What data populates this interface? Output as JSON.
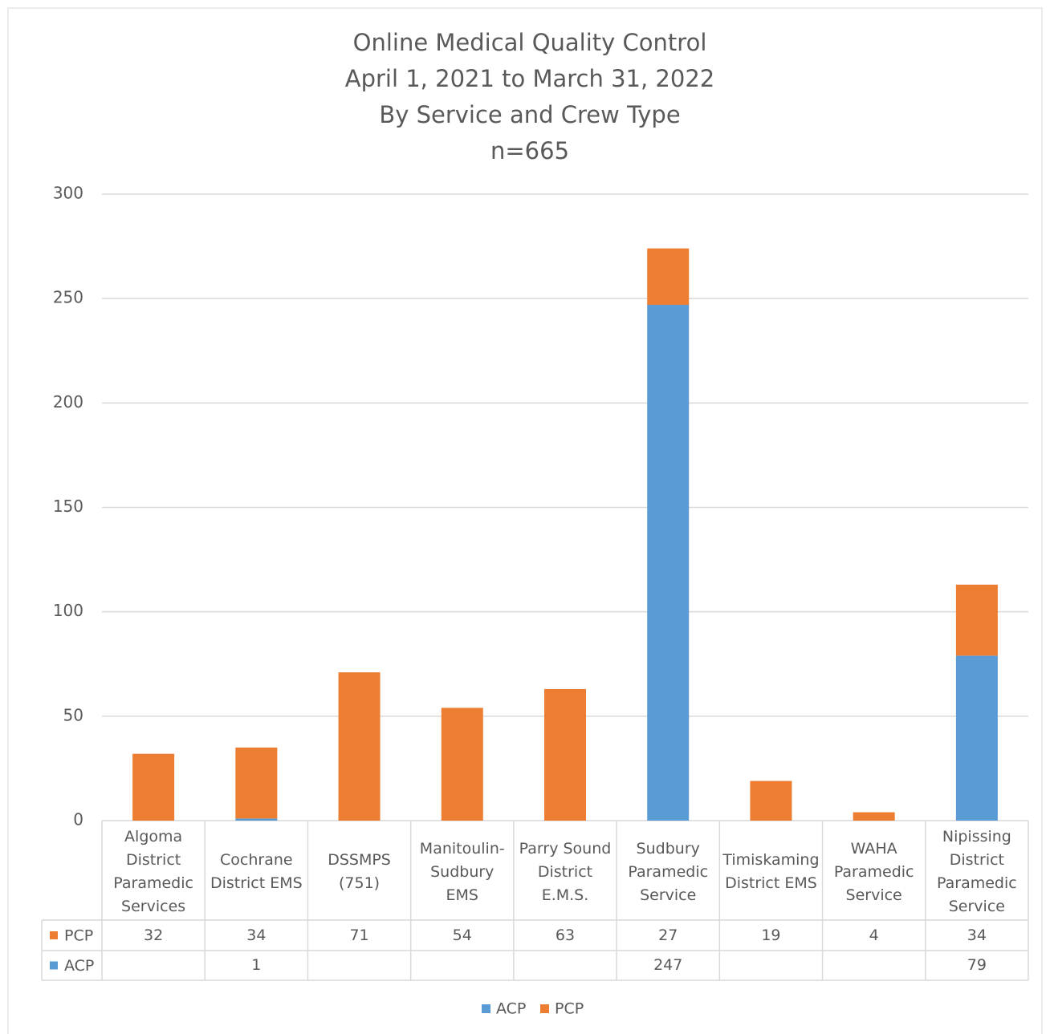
{
  "chart_data": {
    "type": "stacked_bar",
    "title": [
      "Online Medical Quality Control",
      "April 1, 2021 to March 31, 2022",
      "By Service and Crew Type",
      "n=665"
    ],
    "categories": [
      "Algoma District Paramedic Services",
      "Cochrane District EMS",
      "DSSMPS (751)",
      "Manitoulin-Sudbury EMS",
      "Parry Sound District E.M.S.",
      "Sudbury Paramedic Service",
      "Timiskaming District EMS",
      "WAHA Paramedic Service",
      "Nipissing District Paramedic Service"
    ],
    "series": [
      {
        "name": "ACP",
        "color": "#5b9bd5",
        "values": [
          null,
          1,
          null,
          null,
          null,
          247,
          null,
          null,
          79
        ]
      },
      {
        "name": "PCP",
        "color": "#ed7d31",
        "values": [
          32,
          34,
          71,
          54,
          63,
          27,
          19,
          4,
          34
        ]
      }
    ],
    "ylim": [
      0,
      300
    ],
    "yticks": [
      0,
      50,
      100,
      150,
      200,
      250,
      300
    ],
    "grid": true,
    "legend": "bottom",
    "data_table": true
  }
}
